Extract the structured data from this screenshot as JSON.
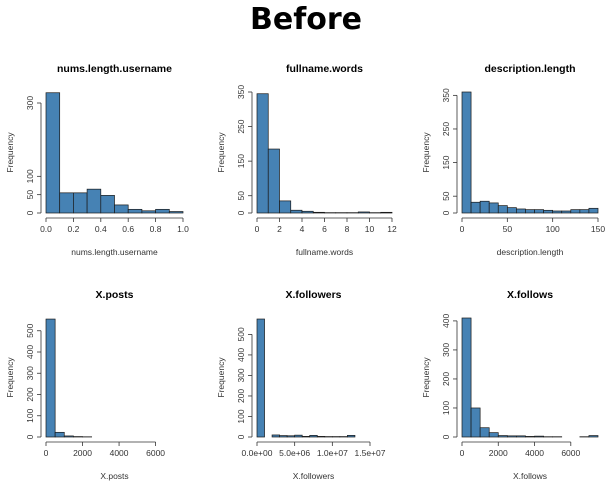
{
  "heading": "Before",
  "chart_data": [
    {
      "type": "bar",
      "title": "nums.length.username",
      "xlabel": "nums.length.username",
      "ylabel": "Frequency",
      "bin_edges": [
        0,
        0.1,
        0.2,
        0.3,
        0.4,
        0.5,
        0.6,
        0.7,
        0.8,
        0.9,
        1.0
      ],
      "values": [
        328,
        55,
        55,
        65,
        48,
        22,
        10,
        6,
        10,
        4
      ],
      "xlim": [
        0,
        1.0
      ],
      "ylim": [
        0,
        330
      ],
      "xticks": [
        {
          "v": 0,
          "label": "0.0"
        },
        {
          "v": 0.2,
          "label": "0.2"
        },
        {
          "v": 0.4,
          "label": "0.4"
        },
        {
          "v": 0.6,
          "label": "0.6"
        },
        {
          "v": 0.8,
          "label": "0.8"
        },
        {
          "v": 1.0,
          "label": "1.0"
        }
      ],
      "yticks": [
        {
          "v": 0,
          "label": "0"
        },
        {
          "v": 50,
          "label": "50"
        },
        {
          "v": 100,
          "label": "100"
        },
        {
          "v": 300,
          "label": "300"
        }
      ]
    },
    {
      "type": "bar",
      "title": "fullname.words",
      "xlabel": "fullname.words",
      "ylabel": "Frequency",
      "bin_edges": [
        0,
        1,
        2,
        3,
        4,
        5,
        6,
        7,
        8,
        9,
        10,
        11,
        12
      ],
      "values": [
        345,
        185,
        35,
        8,
        5,
        2,
        1,
        1,
        1,
        3,
        1,
        2
      ],
      "xlim": [
        0,
        12
      ],
      "ylim": [
        0,
        350
      ],
      "xticks": [
        {
          "v": 0,
          "label": "0"
        },
        {
          "v": 2,
          "label": "2"
        },
        {
          "v": 4,
          "label": "4"
        },
        {
          "v": 6,
          "label": "6"
        },
        {
          "v": 8,
          "label": "8"
        },
        {
          "v": 10,
          "label": "10"
        },
        {
          "v": 12,
          "label": "12"
        }
      ],
      "yticks": [
        {
          "v": 0,
          "label": "0"
        },
        {
          "v": 50,
          "label": "50"
        },
        {
          "v": 150,
          "label": "150"
        },
        {
          "v": 250,
          "label": "250"
        },
        {
          "v": 350,
          "label": "350"
        }
      ]
    },
    {
      "type": "bar",
      "title": "description.length",
      "xlabel": "description.length",
      "ylabel": "Frequency",
      "bin_edges": [
        0,
        10,
        20,
        30,
        40,
        50,
        60,
        70,
        80,
        90,
        100,
        110,
        120,
        130,
        140,
        150
      ],
      "values": [
        360,
        32,
        35,
        30,
        22,
        16,
        12,
        10,
        10,
        8,
        6,
        6,
        10,
        10,
        14
      ],
      "xlim": [
        0,
        150
      ],
      "ylim": [
        0,
        360
      ],
      "xticks": [
        {
          "v": 0,
          "label": "0"
        },
        {
          "v": 50,
          "label": "50"
        },
        {
          "v": 100,
          "label": "100"
        },
        {
          "v": 150,
          "label": "150"
        }
      ],
      "yticks": [
        {
          "v": 0,
          "label": "0"
        },
        {
          "v": 50,
          "label": "50"
        },
        {
          "v": 150,
          "label": "150"
        },
        {
          "v": 250,
          "label": "250"
        },
        {
          "v": 350,
          "label": "350"
        }
      ]
    },
    {
      "type": "bar",
      "title": "X.posts",
      "xlabel": "X.posts",
      "ylabel": "Frequency",
      "bin_edges": [
        0,
        500,
        1000,
        1500,
        2000,
        2500,
        3000,
        3500,
        4000,
        4500,
        5000,
        5500,
        6000,
        6500,
        7000,
        7500
      ],
      "values": [
        555,
        22,
        5,
        2,
        1,
        0,
        0,
        0,
        0,
        0,
        0,
        0,
        0,
        0,
        0
      ],
      "xlim": [
        0,
        7500
      ],
      "ylim": [
        0,
        560
      ],
      "xticks": [
        {
          "v": 0,
          "label": "0"
        },
        {
          "v": 2000,
          "label": "2000"
        },
        {
          "v": 4000,
          "label": "4000"
        },
        {
          "v": 6000,
          "label": "6000"
        }
      ],
      "yticks": [
        {
          "v": 0,
          "label": "0"
        },
        {
          "v": 100,
          "label": "100"
        },
        {
          "v": 200,
          "label": "200"
        },
        {
          "v": 300,
          "label": "300"
        },
        {
          "v": 400,
          "label": "400"
        },
        {
          "v": 500,
          "label": "500"
        }
      ]
    },
    {
      "type": "bar",
      "title": "X.followers",
      "xlabel": "X.followers",
      "ylabel": "Frequency",
      "bin_edges": [
        0,
        1000000,
        2000000,
        3000000,
        4000000,
        5000000,
        6000000,
        7000000,
        8000000,
        9000000,
        10000000,
        11000000,
        12000000,
        13000000,
        14000000,
        15000000
      ],
      "values": [
        575,
        0,
        10,
        7,
        6,
        9,
        3,
        8,
        3,
        2,
        2,
        2,
        8,
        0,
        0
      ],
      "xlim": [
        0,
        15000000
      ],
      "ylim": [
        0,
        580
      ],
      "xticks": [
        {
          "v": 0,
          "label": "0.0e+00"
        },
        {
          "v": 5000000,
          "label": "5.0e+06"
        },
        {
          "v": 10000000,
          "label": "1.0e+07"
        },
        {
          "v": 15000000,
          "label": "1.5e+07"
        }
      ],
      "yticks": [
        {
          "v": 0,
          "label": "0"
        },
        {
          "v": 100,
          "label": "100"
        },
        {
          "v": 200,
          "label": "200"
        },
        {
          "v": 300,
          "label": "300"
        },
        {
          "v": 400,
          "label": "400"
        },
        {
          "v": 500,
          "label": "500"
        }
      ]
    },
    {
      "type": "bar",
      "title": "X.follows",
      "xlabel": "X.follows",
      "ylabel": "Frequency",
      "bin_edges": [
        0,
        500,
        1000,
        1500,
        2000,
        2500,
        3000,
        3500,
        4000,
        4500,
        5000,
        5500,
        6000,
        6500,
        7000,
        7500
      ],
      "values": [
        410,
        100,
        32,
        15,
        5,
        4,
        4,
        2,
        3,
        1,
        1,
        0,
        0,
        1,
        5
      ],
      "xlim": [
        0,
        7500
      ],
      "ylim": [
        0,
        410
      ],
      "xticks": [
        {
          "v": 0,
          "label": "0"
        },
        {
          "v": 2000,
          "label": "2000"
        },
        {
          "v": 4000,
          "label": "4000"
        },
        {
          "v": 6000,
          "label": "6000"
        }
      ],
      "yticks": [
        {
          "v": 0,
          "label": "0"
        },
        {
          "v": 100,
          "label": "100"
        },
        {
          "v": 200,
          "label": "200"
        },
        {
          "v": 300,
          "label": "300"
        },
        {
          "v": 400,
          "label": "400"
        }
      ]
    }
  ]
}
